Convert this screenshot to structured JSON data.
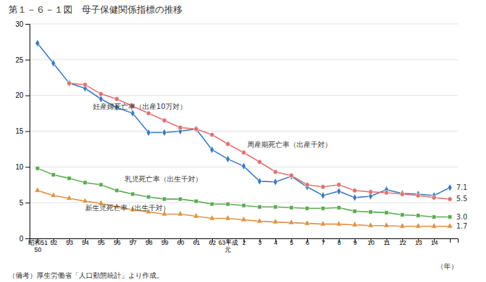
{
  "chart_data": {
    "type": "line",
    "title": "第１－６－１図　母子保健関係指標の推移",
    "footnote": "（備考）厚生労働省「人口動態統計」より作成。",
    "x_label": "（年）",
    "categories": [
      "昭和51\n50",
      "52",
      "53",
      "54",
      "55",
      "56",
      "57",
      "58",
      "59",
      "60",
      "61",
      "62",
      "63平成\n元",
      "2",
      "3",
      "4",
      "5",
      "6",
      "7",
      "8",
      "9",
      "10",
      "11",
      "12",
      "13",
      "14",
      null
    ],
    "ylim": [
      0,
      30
    ],
    "yticks": [
      0,
      5,
      10,
      15,
      20,
      25,
      30
    ],
    "grid": true,
    "series": [
      {
        "color": "#3a7abf",
        "marker": "diamond",
        "values": [
          27.3,
          24.5,
          21.7,
          21.0,
          19.5,
          18.3,
          17.5,
          14.8,
          14.8,
          15.0,
          15.3,
          12.4,
          11.1,
          10.1,
          8.0,
          7.9,
          8.7,
          7.2,
          6.0,
          6.6,
          5.7,
          5.9,
          6.8,
          6.3,
          6.2,
          6.0,
          7.1
        ]
      },
      {
        "color": "#e07070",
        "marker": "circle",
        "values": [
          null,
          null,
          21.7,
          21.5,
          20.2,
          19.5,
          18.5,
          17.5,
          16.5,
          15.5,
          15.3,
          14.5,
          13.2,
          12.0,
          10.7,
          9.3,
          8.8,
          7.5,
          7.2,
          7.5,
          6.7,
          6.5,
          6.4,
          6.2,
          6.0,
          5.7,
          5.5
        ]
      },
      {
        "color": "#5aaa50",
        "marker": "square",
        "values": [
          9.8,
          8.9,
          8.4,
          7.8,
          7.5,
          6.7,
          6.2,
          5.8,
          5.5,
          5.5,
          5.2,
          4.8,
          4.8,
          4.6,
          4.4,
          4.4,
          4.3,
          4.2,
          4.2,
          4.3,
          3.8,
          3.7,
          3.6,
          3.3,
          3.2,
          3.0,
          3.0
        ]
      },
      {
        "color": "#e09040",
        "marker": "triangle",
        "values": [
          6.7,
          6.0,
          5.6,
          5.2,
          4.9,
          4.4,
          4.0,
          3.7,
          3.4,
          3.4,
          3.1,
          2.8,
          2.8,
          2.6,
          2.4,
          2.3,
          2.2,
          2.1,
          2.0,
          2.0,
          1.9,
          1.8,
          1.8,
          1.7,
          1.7,
          1.7,
          1.7
        ]
      }
    ],
    "annotations": [
      {
        "text": "妊産婦死亡率（出産10万対）",
        "x": 3.5,
        "y": 18.8
      },
      {
        "text": "周産期死亡率（出産千対）",
        "x": 13.2,
        "y": 12.8
      },
      {
        "text": "乳児死亡率（出生千対）",
        "x": 5.5,
        "y": 8.7
      },
      {
        "text": "新生児死亡率（出生千対）",
        "x": 3.0,
        "y": 4.6
      },
      {
        "text": "7.1",
        "x": 26,
        "y": 7.1
      },
      {
        "text": "5.5",
        "x": 26,
        "y": 5.5
      },
      {
        "text": "3.0",
        "x": 26,
        "y": 3.0
      },
      {
        "text": "1.7",
        "x": 26,
        "y": 1.7
      }
    ]
  }
}
